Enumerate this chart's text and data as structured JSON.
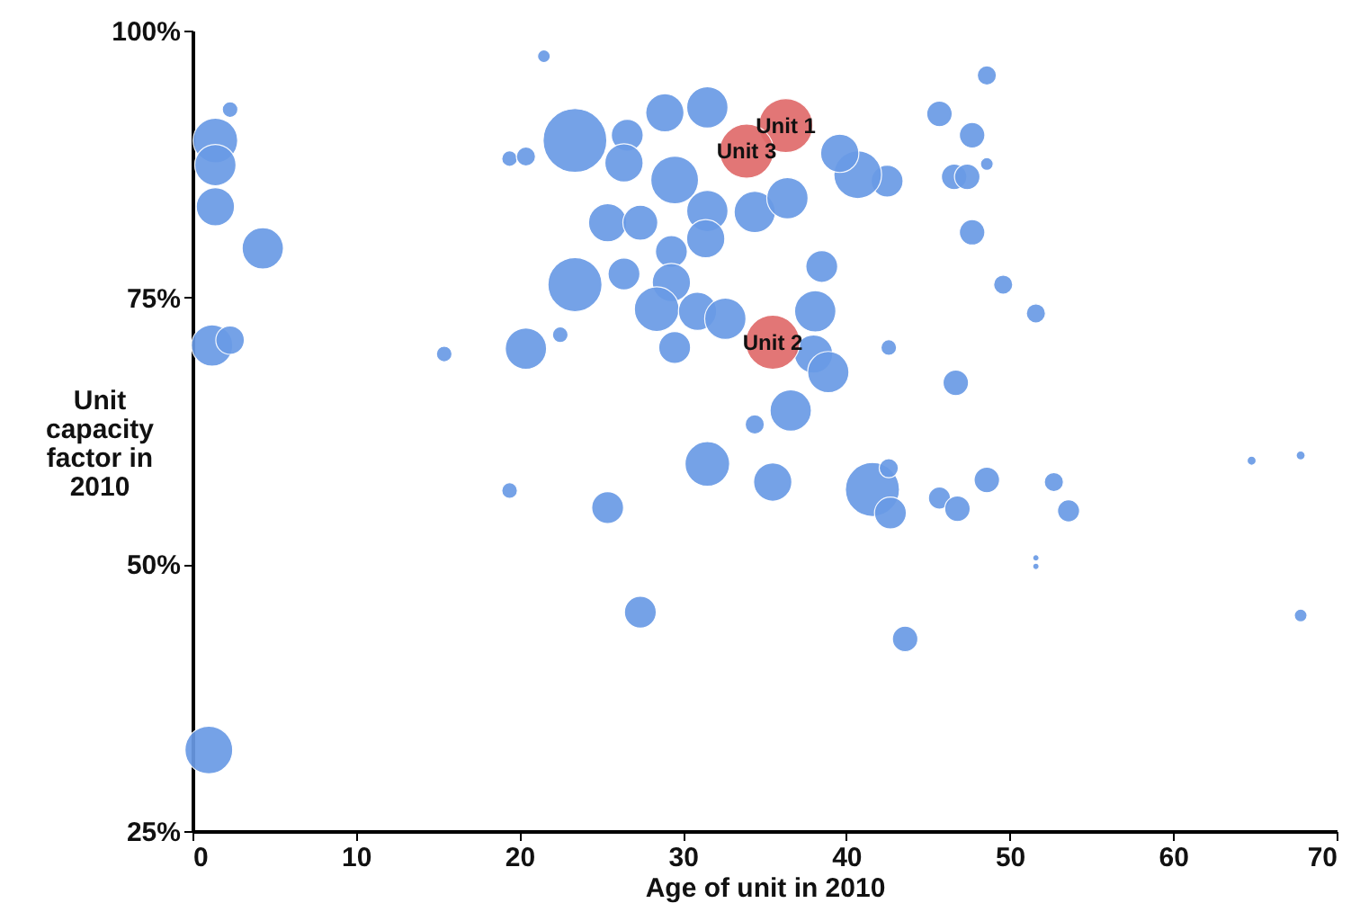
{
  "chart_data": {
    "type": "bubble",
    "xlabel": "Age of unit in 2010",
    "ylabel": "Unit capacity factor in 2010",
    "xlim": [
      0,
      70
    ],
    "xticks": [
      0,
      10,
      20,
      30,
      40,
      50,
      60,
      70
    ],
    "ylim": [
      25,
      100
    ],
    "yticks": [
      {
        "value": 25,
        "label": "25%"
      },
      {
        "value": 50,
        "label": "50%"
      },
      {
        "value": 75,
        "label": "75%"
      },
      {
        "value": 100,
        "label": "100%"
      }
    ],
    "grid": false,
    "series": [
      {
        "color": "#6a9be6",
        "x": [
          1.4,
          1.4,
          2.3,
          1.4,
          4.3,
          1.2,
          2.3,
          1.0,
          15.4,
          19.4,
          20.4,
          21.5,
          23.4,
          26.6,
          26.4,
          25.4,
          27.4,
          23.4,
          26.4,
          22.5,
          20.4,
          19.4,
          25.4,
          27.4,
          48.6,
          45.7,
          47.7,
          48.6,
          46.6,
          47.4,
          47.7,
          49.6,
          51.6,
          42.6,
          46.7,
          42.5,
          40.7,
          39.6,
          31.5,
          28.9,
          29.5,
          31.5,
          34.4,
          36.4,
          31.4,
          29.3,
          29.3,
          38.5,
          38.1,
          28.4,
          30.9,
          32.6,
          29.5,
          38.0,
          38.9,
          34.4,
          36.6,
          31.5,
          35.5,
          41.6,
          42.6,
          42.7,
          45.7,
          46.8,
          48.6,
          52.7,
          53.6,
          51.6,
          51.6,
          43.6,
          64.8,
          67.8,
          67.8
        ],
        "values": [
          89.7,
          87.4,
          92.6,
          83.5,
          79.6,
          70.5,
          71.0,
          32.6,
          69.7,
          88.0,
          88.2,
          97.6,
          89.7,
          90.2,
          87.6,
          82.0,
          82.0,
          76.2,
          77.2,
          71.5,
          70.2,
          56.9,
          55.3,
          45.5,
          95.8,
          92.2,
          90.2,
          87.5,
          86.3,
          86.3,
          81.1,
          76.2,
          73.5,
          70.3,
          67.0,
          85.9,
          86.5,
          88.5,
          92.8,
          92.3,
          86.0,
          83.1,
          83.0,
          84.3,
          80.5,
          79.3,
          76.4,
          77.9,
          73.7,
          73.9,
          73.7,
          73.0,
          70.3,
          69.7,
          68.0,
          63.1,
          64.4,
          59.4,
          57.7,
          57.0,
          59.0,
          54.8,
          56.2,
          55.2,
          57.9,
          57.7,
          55.0,
          50.6,
          49.8,
          43.0,
          59.7,
          60.2,
          45.2
        ],
        "sizes": [
          0.49,
          0.42,
          0.06,
          0.36,
          0.42,
          0.42,
          0.2,
          0.56,
          0.06,
          0.06,
          0.09,
          0.04,
          1,
          0.25,
          0.36,
          0.36,
          0.3,
          0.72,
          0.25,
          0.06,
          0.42,
          0.06,
          0.25,
          0.25,
          0.09,
          0.16,
          0.16,
          0.04,
          0.16,
          0.16,
          0.16,
          0.09,
          0.09,
          0.06,
          0.16,
          0.25,
          0.56,
          0.36,
          0.42,
          0.36,
          0.56,
          0.42,
          0.42,
          0.42,
          0.36,
          0.25,
          0.36,
          0.25,
          0.42,
          0.49,
          0.36,
          0.42,
          0.25,
          0.36,
          0.42,
          0.09,
          0.42,
          0.49,
          0.36,
          0.72,
          0.09,
          0.25,
          0.12,
          0.16,
          0.16,
          0.09,
          0.12,
          0.01,
          0.01,
          0.16,
          0.02,
          0.02,
          0.04
        ]
      },
      {
        "color": "#e06b6b",
        "x": [
          36.3,
          33.9,
          35.5
        ],
        "values": [
          91.1,
          88.7,
          70.8
        ],
        "sizes": [
          0.72,
          0.72,
          0.72
        ]
      }
    ],
    "annotations": [
      {
        "text": "Unit 1",
        "x": 36.3,
        "y": 91.1
      },
      {
        "text": "Unit 3",
        "x": 33.9,
        "y": 88.7
      },
      {
        "text": "Unit 2",
        "x": 35.5,
        "y": 70.8
      }
    ]
  }
}
